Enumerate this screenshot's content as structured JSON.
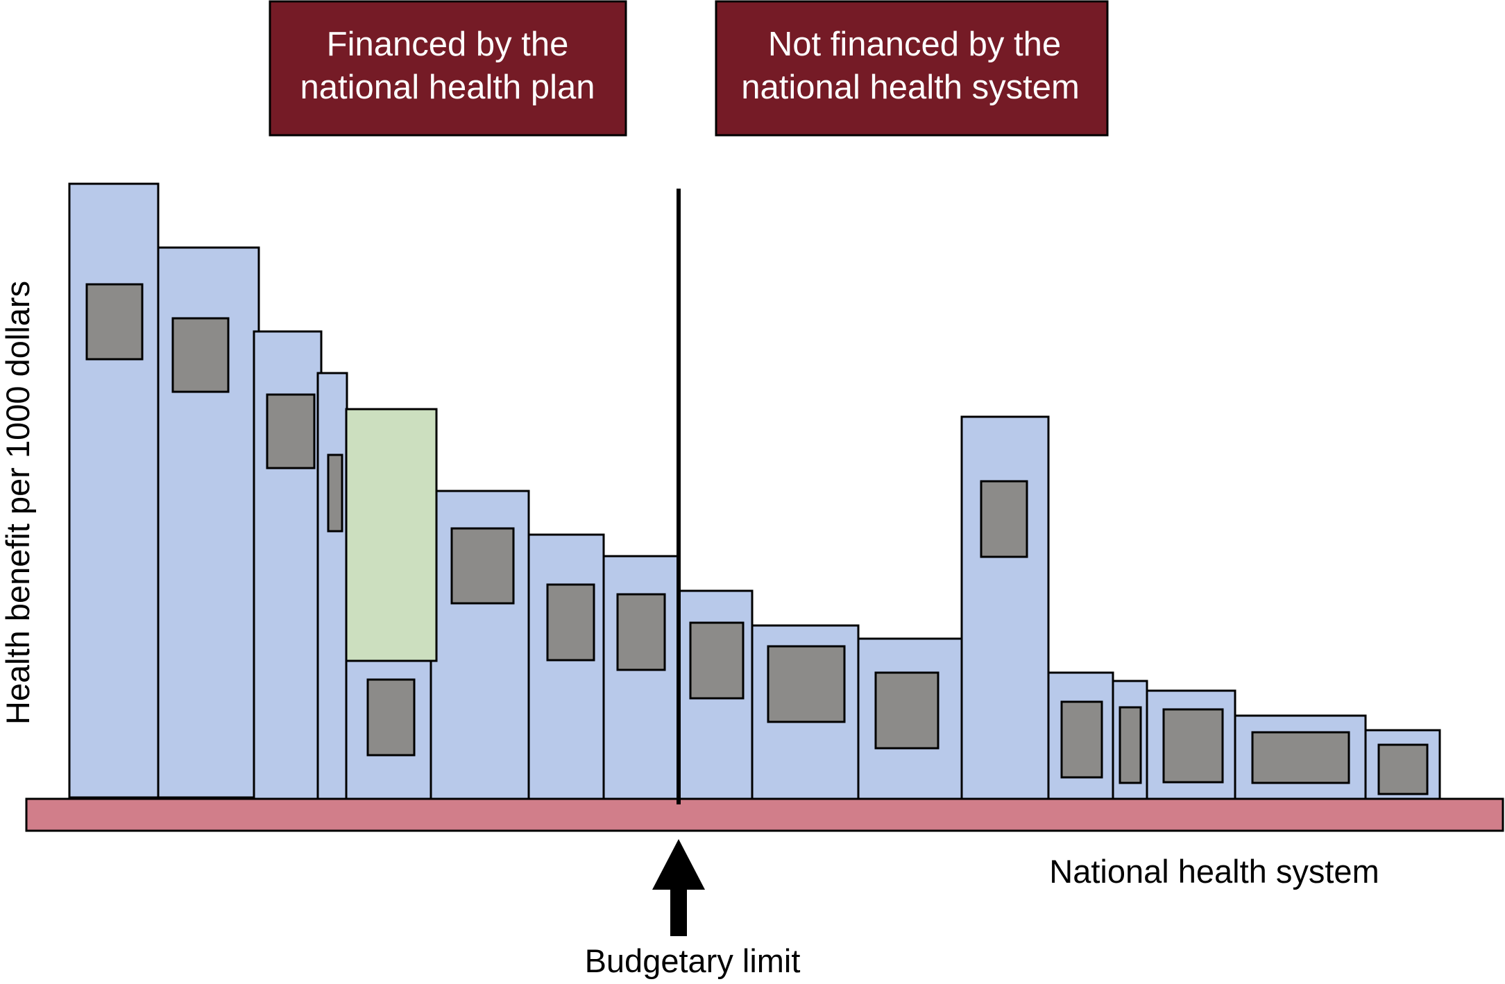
{
  "banners": {
    "left": {
      "lines": [
        "Financed by the",
        "national health plan"
      ]
    },
    "right": {
      "lines": [
        "Not financed by the",
        "national health system"
      ]
    }
  },
  "axis": {
    "y_label": "Health benefit per 1000 dollars",
    "x_label": "National health system"
  },
  "budget": {
    "label": "Budgetary limit"
  },
  "colors": {
    "bar": "#b8c9ea",
    "highlight_bar": "#ccdfbf",
    "inner_box": "#8c8b89",
    "base": "#d17e8a",
    "banner": "#751b26",
    "outline": "#000000"
  }
}
